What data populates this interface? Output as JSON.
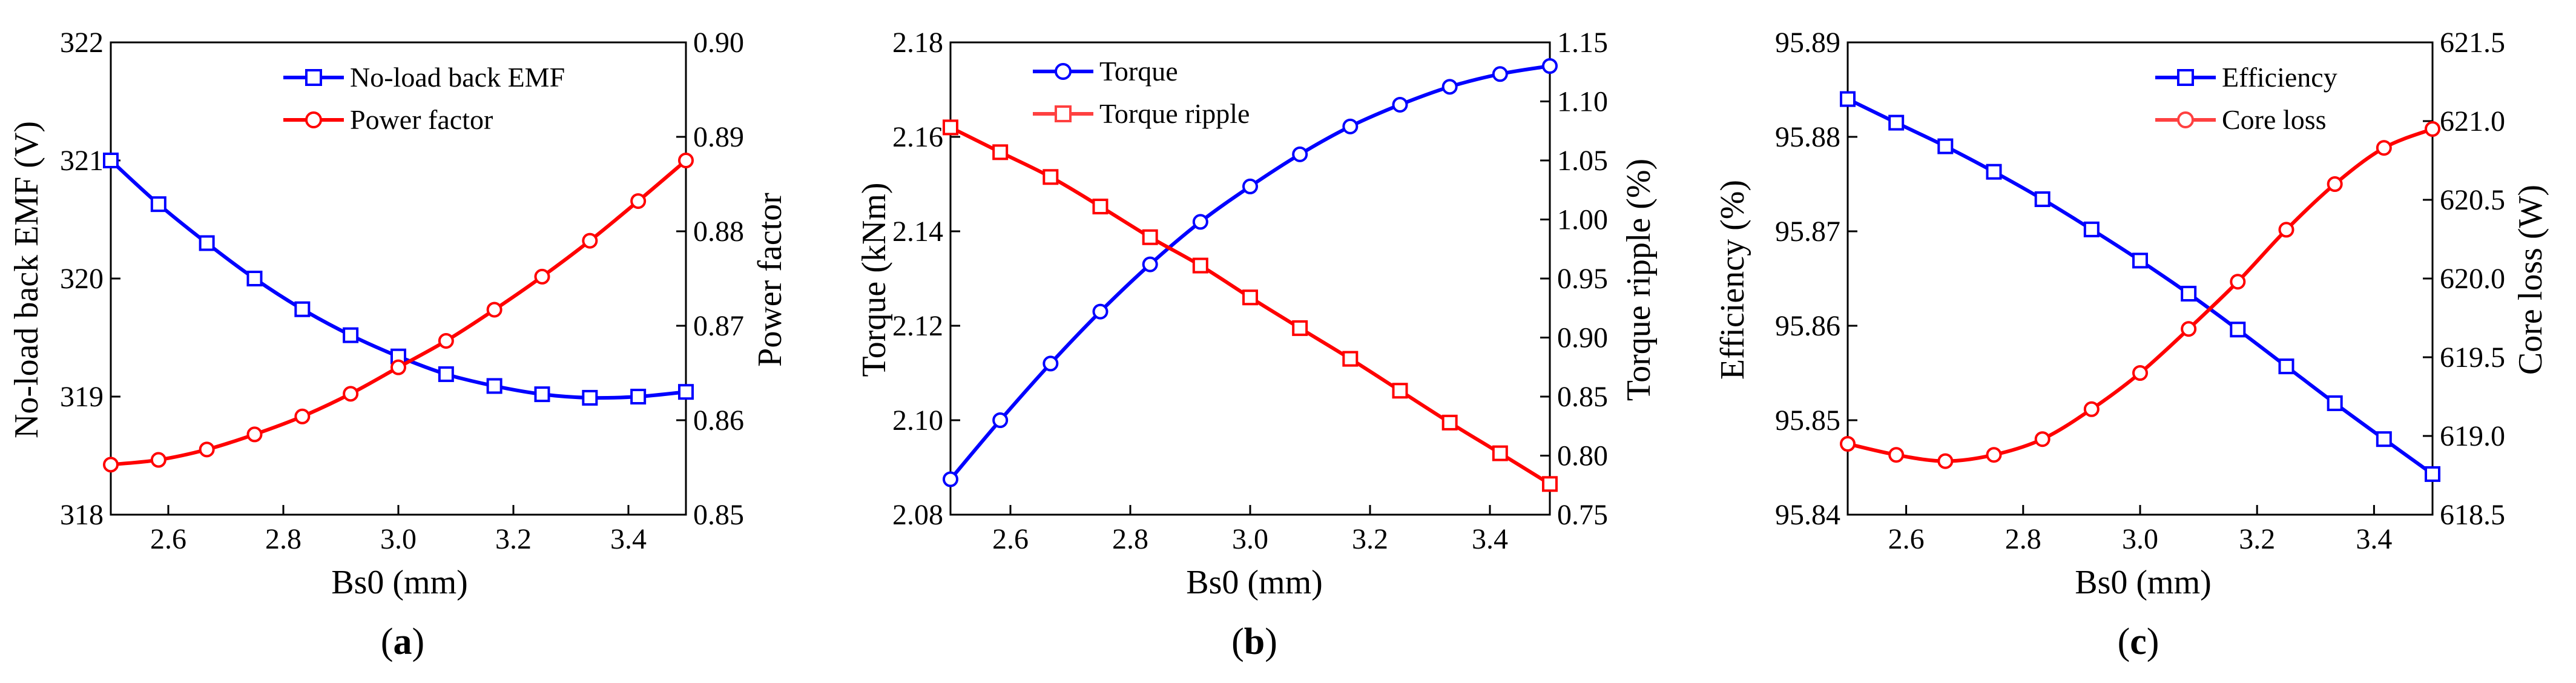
{
  "chart_data": [
    {
      "id": "a",
      "panel_label": {
        "open": "(",
        "letter": "a",
        "close": ")"
      },
      "type": "line",
      "xlabel": "Bs0 (mm)",
      "xlim": [
        2.5,
        3.5
      ],
      "xticks": [
        2.6,
        2.8,
        3.0,
        3.2,
        3.4
      ],
      "x": [
        2.5,
        2.583,
        2.667,
        2.75,
        2.833,
        2.917,
        3.0,
        3.083,
        3.167,
        3.25,
        3.333,
        3.417,
        3.5
      ],
      "left_axis": {
        "label": "No-load back EMF (V)",
        "lim": [
          318,
          322
        ],
        "ticks": [
          318,
          319,
          320,
          321,
          322
        ],
        "decimals": 0
      },
      "right_axis": {
        "label": "Power factor",
        "lim": [
          0.85,
          0.9
        ],
        "ticks": [
          0.85,
          0.86,
          0.87,
          0.88,
          0.89,
          0.9
        ],
        "decimals": 2
      },
      "legend_position": "top-center",
      "series": [
        {
          "name": "No-load back EMF",
          "axis": "left",
          "color": "#0000ff",
          "marker": "square",
          "values": [
            321.0,
            320.63,
            320.3,
            320.0,
            319.74,
            319.52,
            319.34,
            319.19,
            319.09,
            319.02,
            318.99,
            319.0,
            319.04
          ]
        },
        {
          "name": "Power factor",
          "axis": "right",
          "color": "#ff0000",
          "marker": "circle",
          "values": [
            0.8553,
            0.8558,
            0.8569,
            0.8585,
            0.8604,
            0.8628,
            0.8656,
            0.8684,
            0.8717,
            0.8752,
            0.879,
            0.8832,
            0.8875
          ]
        }
      ]
    },
    {
      "id": "b",
      "panel_label": {
        "open": "(",
        "letter": "b",
        "close": ")"
      },
      "type": "line",
      "xlabel": "Bs0 (mm)",
      "xlim": [
        2.5,
        3.5
      ],
      "xticks": [
        2.6,
        2.8,
        3.0,
        3.2,
        3.4
      ],
      "x": [
        2.5,
        2.583,
        2.667,
        2.75,
        2.833,
        2.917,
        3.0,
        3.083,
        3.167,
        3.25,
        3.333,
        3.417,
        3.5
      ],
      "left_axis": {
        "label": "Torque (kNm)",
        "lim": [
          2.08,
          2.18
        ],
        "ticks": [
          2.08,
          2.1,
          2.12,
          2.14,
          2.16,
          2.18
        ],
        "decimals": 2
      },
      "right_axis": {
        "label": "Torque ripple (%)",
        "lim": [
          0.75,
          1.15
        ],
        "ticks": [
          0.75,
          0.8,
          0.85,
          0.9,
          0.95,
          1.0,
          1.05,
          1.1,
          1.15
        ],
        "decimals": 2
      },
      "legend_position": "top-left",
      "series": [
        {
          "name": "Torque",
          "axis": "left",
          "color": "#0000ff",
          "marker": "circle",
          "values": [
            2.0875,
            2.1,
            2.112,
            2.123,
            2.133,
            2.142,
            2.1495,
            2.1563,
            2.1622,
            2.1668,
            2.1706,
            2.1733,
            2.175
          ]
        },
        {
          "name": "Torque ripple",
          "axis": "right",
          "color": "#ff0000",
          "marker": "square",
          "values": [
            1.078,
            1.057,
            1.036,
            1.011,
            0.985,
            0.961,
            0.934,
            0.908,
            0.882,
            0.855,
            0.828,
            0.802,
            0.776
          ]
        }
      ]
    },
    {
      "id": "c",
      "panel_label": {
        "open": "(",
        "letter": "c",
        "close": ")"
      },
      "type": "line",
      "xlabel": "Bs0 (mm)",
      "xlim": [
        2.5,
        3.5
      ],
      "xticks": [
        2.6,
        2.8,
        3.0,
        3.2,
        3.4
      ],
      "x": [
        2.5,
        2.583,
        2.667,
        2.75,
        2.833,
        2.917,
        3.0,
        3.083,
        3.167,
        3.25,
        3.333,
        3.417,
        3.5
      ],
      "left_axis": {
        "label": "Efficiency (%)",
        "lim": [
          95.84,
          95.89
        ],
        "ticks": [
          95.84,
          95.85,
          95.86,
          95.87,
          95.88,
          95.89
        ],
        "decimals": 2
      },
      "right_axis": {
        "label": "Core loss (W)",
        "lim": [
          618.5,
          621.5
        ],
        "ticks": [
          618.5,
          619.0,
          619.5,
          620.0,
          620.5,
          621.0,
          621.5
        ],
        "decimals": 1
      },
      "legend_position": "top-right",
      "series": [
        {
          "name": "Efficiency",
          "axis": "left",
          "color": "#0000ff",
          "marker": "square",
          "values": [
            95.884,
            95.8815,
            95.879,
            95.8763,
            95.8734,
            95.8702,
            95.8669,
            95.8634,
            95.8596,
            95.8557,
            95.8518,
            95.848,
            95.8443
          ]
        },
        {
          "name": "Core loss",
          "axis": "right",
          "color": "#ff0000",
          "marker": "circle",
          "values": [
            618.95,
            618.88,
            618.84,
            618.88,
            618.98,
            619.17,
            619.4,
            619.68,
            619.98,
            620.31,
            620.6,
            620.83,
            620.95
          ]
        }
      ]
    }
  ]
}
